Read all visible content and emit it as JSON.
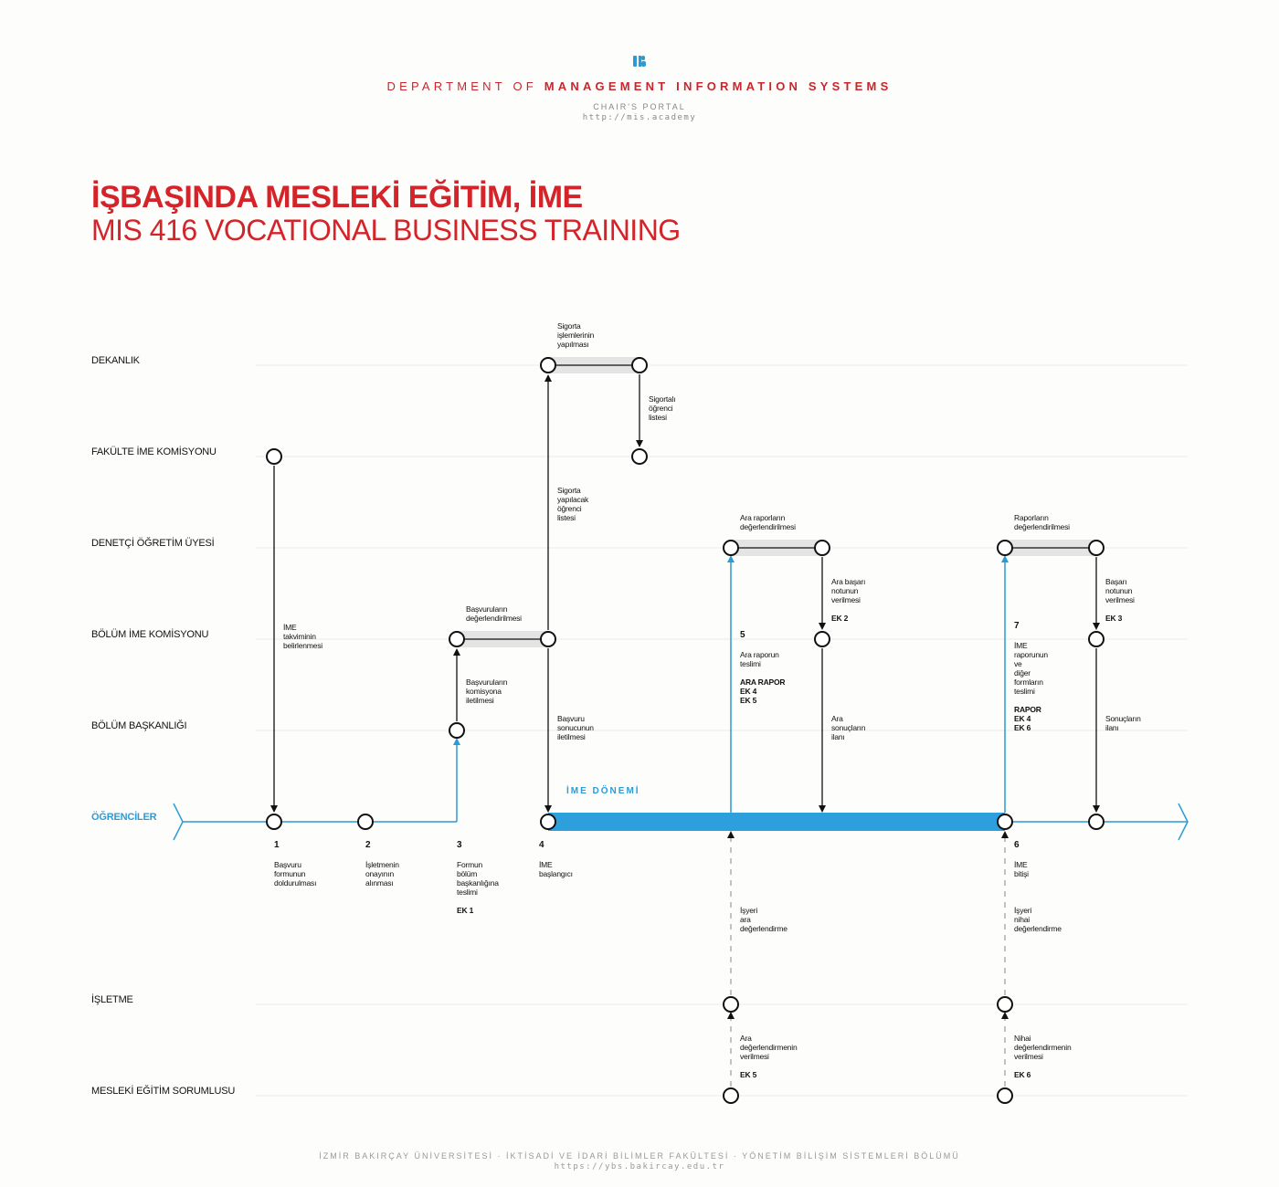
{
  "header": {
    "logo_icon": "ub-logo-icon",
    "dept_prefix": "DEPARTMENT OF",
    "dept_name": "MANAGEMENT INFORMATION SYSTEMS",
    "portal": "CHAIR'S PORTAL",
    "portal_url": "http://mis.academy"
  },
  "title": {
    "tr": "İŞBAŞINDA MESLEKİ EĞİTİM, İME",
    "en": "MIS 416 VOCATIONAL BUSINESS TRAINING"
  },
  "lanes": {
    "dekanlik": "DEKANLIK",
    "fakulte": "FAKÜLTE İME KOMİSYONU",
    "denetci": "DENETÇİ ÖĞRETİM ÜYESİ",
    "bolum_ime": "BÖLÜM İME KOMİSYONU",
    "bolum_bask": "BÖLÜM BAŞKANLIĞI",
    "ogrenciler": "ÖĞRENCİLER",
    "isletme": "İŞLETME",
    "mesleki": "MESLEKİ EĞİTİM SORUMLUSU"
  },
  "period_label": "İME DÖNEMİ",
  "steps": {
    "s1": {
      "num": "1",
      "text": "Başvuru\nformunun\ndoldurulması"
    },
    "s2": {
      "num": "2",
      "text": "İşletmenin\nonayının\nalınması"
    },
    "s3": {
      "num": "3",
      "text": "Formun\nbölüm\nbaşkanlığına\nteslimi",
      "doc": "EK 1"
    },
    "s4": {
      "num": "4",
      "text": "İME\nbaşlangıcı"
    },
    "s5": {
      "num": "5",
      "text": "Ara raporun\nteslimi",
      "doc": "ARA RAPOR\nEK 4\nEK 5"
    },
    "s6": {
      "num": "6",
      "text": "İME\nbitişi"
    },
    "s7": {
      "num": "7",
      "text": "İME\nraporunun\nve\ndiğer\nformların\nteslimi",
      "doc": "RAPOR\nEK 4\nEK 6"
    }
  },
  "labels": {
    "sigorta_islem": "Sigorta\nişlemlerinin\nyapılması",
    "sigortali_liste": "Sigortalı\nöğrenci\nlistesi",
    "sigorta_yapilacak": "Sigorta\nyapılacak\nöğrenci\nlistesi",
    "ime_takvim": "İME\ntakviminin\nbelirlenmesi",
    "basvuru_deger": "Başvuruların\ndeğerlendirilmesi",
    "basvuru_iletim": "Başvuruların\nkomisyona\niletilmesi",
    "basvuru_sonuc": "Başvuru\nsonucunun\niletilmesi",
    "ara_rapor_deger": "Ara raporların\ndeğerlendirilmesi",
    "ara_basari": "Ara başarı\nnotunun\nverilmesi",
    "ara_basari_doc": "EK 2",
    "ara_sonuc": "Ara\nsonuçların\nilanı",
    "rapor_deger": "Raporların\ndeğerlendirilmesi",
    "basari_not": "Başarı\nnotunun\nverilmesi",
    "basari_not_doc": "EK 3",
    "sonuc_ilan": "Sonuçların\nilanı",
    "isyeri_ara": "İşyeri\nara\ndeğerlendirme",
    "isyeri_nihai": "İşyeri\nnihai\ndeğerlendirme",
    "ara_deger_ver": "Ara\ndeğerlendirmenin\nverilmesi",
    "ara_deger_doc": "EK 5",
    "nihai_deger_ver": "Nihai\ndeğerlendirmenin\nverilmesi",
    "nihai_deger_doc": "EK 6"
  },
  "colors": {
    "accent_red": "#d5232a",
    "student_blue": "#2b9bd6",
    "period_bar": "#2d9fdc"
  },
  "footer": {
    "line1": "İZMİR BAKIRÇAY ÜNİVERSİTESİ · İKTİSADİ VE İDARİ BİLİMLER FAKÜLTESİ · YÖNETİM BİLİŞİM SİSTEMLERİ BÖLÜMÜ",
    "line2": "https://ybs.bakircay.edu.tr"
  }
}
